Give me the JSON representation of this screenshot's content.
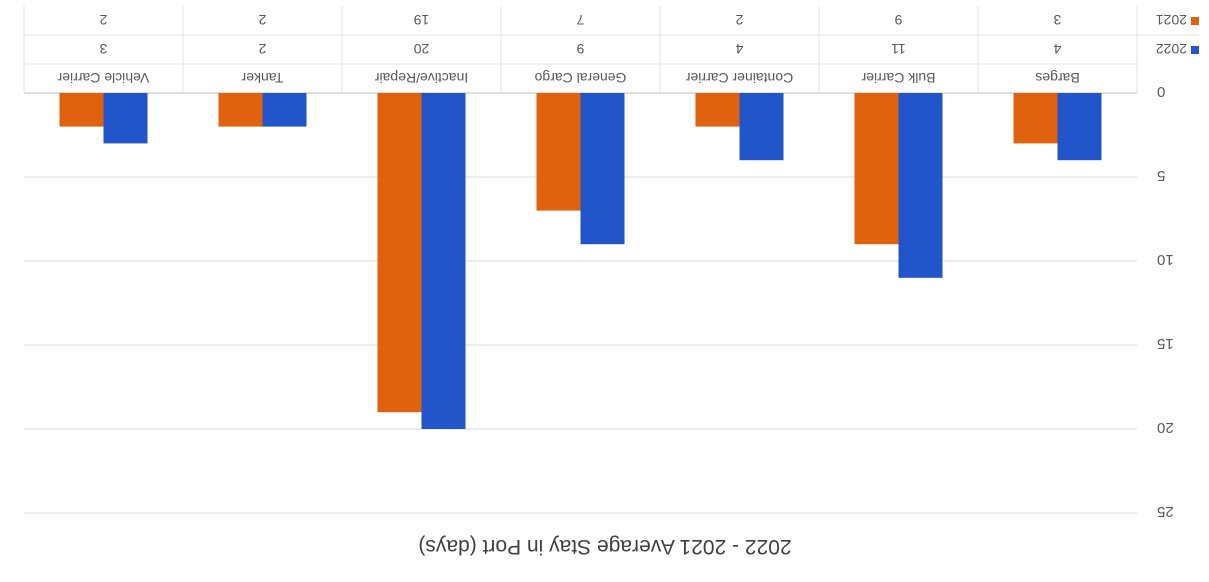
{
  "chart_data": {
    "type": "bar",
    "title": "2022 - 2021 Average Stay in Port (days)",
    "xlabel": "",
    "ylabel": "",
    "categories": [
      "Barges",
      "Bulk Carrier",
      "Container Carrier",
      "General Cargo",
      "Inactive/Repair",
      "Tanker",
      "Vehicle Carrier"
    ],
    "series": [
      {
        "name": "2022",
        "values": [
          4,
          11,
          4,
          9,
          20,
          2,
          3
        ],
        "color": "#2155c9"
      },
      {
        "name": "2021",
        "values": [
          3,
          9,
          2,
          7,
          19,
          2,
          2
        ],
        "color": "#e0610e"
      }
    ],
    "ylim": [
      0,
      25
    ],
    "yticks": [
      0,
      5,
      10,
      15,
      20,
      25
    ],
    "grid": true,
    "data_table": true,
    "legend_placement": "data-table"
  }
}
